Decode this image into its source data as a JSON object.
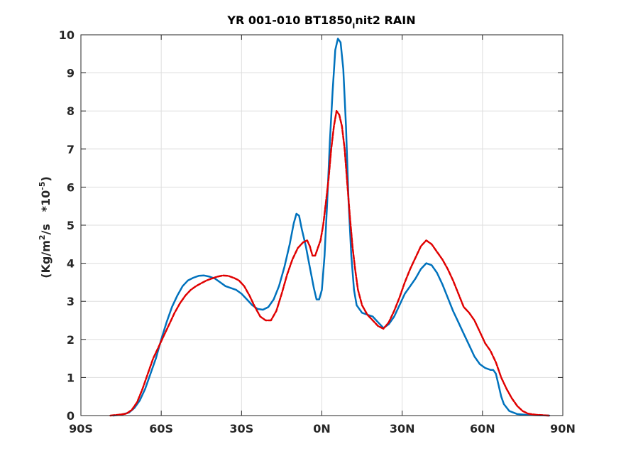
{
  "chart_data": {
    "type": "line",
    "title": {
      "prefix": "YR 001-010 BT1850",
      "subscript": "i",
      "suffix": "nit2 RAIN"
    },
    "ylabel": {
      "part1": "(Kg/m",
      "sup1": "2",
      "part2": "/s   *10",
      "sup2": "-5",
      "part3": ")"
    },
    "xlabel": "",
    "xlim": [
      -90,
      90
    ],
    "ylim": [
      0,
      10
    ],
    "xticks": [
      -90,
      -60,
      -30,
      0,
      30,
      60,
      90
    ],
    "xtick_labels": [
      "90S",
      "60S",
      "30S",
      "0N",
      "30N",
      "60N",
      "90N"
    ],
    "yticks": [
      0,
      1,
      2,
      3,
      4,
      5,
      6,
      7,
      8,
      9,
      10
    ],
    "ytick_labels": [
      "0",
      "1",
      "2",
      "3",
      "4",
      "5",
      "6",
      "7",
      "8",
      "9",
      "10"
    ],
    "grid": true,
    "series": [
      {
        "color": "#0072BD",
        "dash": "solid",
        "points": [
          [
            -78,
            0
          ],
          [
            -75,
            0.02
          ],
          [
            -72,
            0.08
          ],
          [
            -70,
            0.2
          ],
          [
            -68,
            0.4
          ],
          [
            -66,
            0.7
          ],
          [
            -64,
            1.1
          ],
          [
            -62,
            1.5
          ],
          [
            -60,
            2.0
          ],
          [
            -58,
            2.45
          ],
          [
            -56,
            2.85
          ],
          [
            -54,
            3.15
          ],
          [
            -52,
            3.4
          ],
          [
            -50,
            3.55
          ],
          [
            -48,
            3.62
          ],
          [
            -46,
            3.67
          ],
          [
            -44,
            3.68
          ],
          [
            -42,
            3.65
          ],
          [
            -40,
            3.6
          ],
          [
            -38,
            3.5
          ],
          [
            -36,
            3.4
          ],
          [
            -34,
            3.35
          ],
          [
            -32,
            3.3
          ],
          [
            -30,
            3.2
          ],
          [
            -28,
            3.05
          ],
          [
            -26,
            2.9
          ],
          [
            -24,
            2.8
          ],
          [
            -22,
            2.78
          ],
          [
            -20,
            2.85
          ],
          [
            -18,
            3.05
          ],
          [
            -16,
            3.4
          ],
          [
            -14,
            3.9
          ],
          [
            -12,
            4.5
          ],
          [
            -10.5,
            5.05
          ],
          [
            -9.5,
            5.3
          ],
          [
            -8.5,
            5.25
          ],
          [
            -7.5,
            4.9
          ],
          [
            -6,
            4.45
          ],
          [
            -4.5,
            3.9
          ],
          [
            -3,
            3.35
          ],
          [
            -2,
            3.05
          ],
          [
            -1,
            3.05
          ],
          [
            0,
            3.3
          ],
          [
            1,
            4.2
          ],
          [
            2,
            5.6
          ],
          [
            3,
            7.2
          ],
          [
            4,
            8.5
          ],
          [
            5,
            9.6
          ],
          [
            6,
            9.9
          ],
          [
            7,
            9.8
          ],
          [
            8,
            9.1
          ],
          [
            9,
            7.6
          ],
          [
            10,
            5.6
          ],
          [
            11,
            4.2
          ],
          [
            12,
            3.3
          ],
          [
            13,
            2.9
          ],
          [
            15,
            2.7
          ],
          [
            17,
            2.65
          ],
          [
            19,
            2.6
          ],
          [
            21,
            2.45
          ],
          [
            23,
            2.3
          ],
          [
            25,
            2.4
          ],
          [
            27,
            2.6
          ],
          [
            29,
            2.9
          ],
          [
            31,
            3.2
          ],
          [
            33,
            3.4
          ],
          [
            35,
            3.6
          ],
          [
            37,
            3.85
          ],
          [
            39,
            4.0
          ],
          [
            41,
            3.95
          ],
          [
            43,
            3.75
          ],
          [
            45,
            3.45
          ],
          [
            47,
            3.1
          ],
          [
            49,
            2.75
          ],
          [
            51,
            2.45
          ],
          [
            53,
            2.15
          ],
          [
            55,
            1.85
          ],
          [
            57,
            1.55
          ],
          [
            59,
            1.35
          ],
          [
            61,
            1.25
          ],
          [
            63,
            1.2
          ],
          [
            64,
            1.2
          ],
          [
            65,
            1.1
          ],
          [
            66,
            0.8
          ],
          [
            67,
            0.5
          ],
          [
            68,
            0.3
          ],
          [
            70,
            0.12
          ],
          [
            73,
            0.04
          ],
          [
            76,
            0.02
          ],
          [
            80,
            0.01
          ],
          [
            85,
            0
          ]
        ]
      },
      {
        "color": "#E00000",
        "dash": "dashed",
        "points": [
          [
            -79,
            0
          ],
          [
            -76,
            0.02
          ],
          [
            -73,
            0.05
          ],
          [
            -71,
            0.15
          ],
          [
            -69,
            0.35
          ],
          [
            -67,
            0.7
          ],
          [
            -65,
            1.1
          ],
          [
            -63,
            1.5
          ],
          [
            -61,
            1.8
          ],
          [
            -59,
            2.1
          ],
          [
            -57,
            2.4
          ],
          [
            -55,
            2.7
          ],
          [
            -53,
            2.95
          ],
          [
            -51,
            3.15
          ],
          [
            -49,
            3.3
          ],
          [
            -47,
            3.4
          ],
          [
            -45,
            3.48
          ],
          [
            -43,
            3.55
          ],
          [
            -41,
            3.6
          ],
          [
            -39,
            3.65
          ],
          [
            -37,
            3.68
          ],
          [
            -35,
            3.67
          ],
          [
            -33,
            3.62
          ],
          [
            -31,
            3.55
          ],
          [
            -29,
            3.4
          ],
          [
            -27,
            3.15
          ],
          [
            -25,
            2.85
          ],
          [
            -23,
            2.6
          ],
          [
            -21,
            2.5
          ],
          [
            -19,
            2.5
          ],
          [
            -17,
            2.75
          ],
          [
            -15,
            3.2
          ],
          [
            -13,
            3.7
          ],
          [
            -11,
            4.1
          ],
          [
            -9,
            4.4
          ],
          [
            -7,
            4.55
          ],
          [
            -5.5,
            4.6
          ],
          [
            -4.5,
            4.45
          ],
          [
            -3.5,
            4.2
          ],
          [
            -2.5,
            4.2
          ],
          [
            -1.5,
            4.4
          ],
          [
            -0.5,
            4.6
          ],
          [
            0.5,
            5.0
          ],
          [
            1.5,
            5.6
          ],
          [
            2.5,
            6.2
          ],
          [
            3.5,
            7.0
          ],
          [
            4.5,
            7.6
          ],
          [
            5.5,
            8.0
          ],
          [
            6.5,
            7.9
          ],
          [
            7.5,
            7.6
          ],
          [
            8.5,
            7.0
          ],
          [
            9.5,
            6.1
          ],
          [
            10.5,
            5.2
          ],
          [
            11.5,
            4.4
          ],
          [
            12.5,
            3.8
          ],
          [
            13.5,
            3.3
          ],
          [
            15,
            2.9
          ],
          [
            17,
            2.65
          ],
          [
            19,
            2.5
          ],
          [
            21,
            2.35
          ],
          [
            23,
            2.28
          ],
          [
            25,
            2.45
          ],
          [
            27,
            2.75
          ],
          [
            29,
            3.1
          ],
          [
            31,
            3.5
          ],
          [
            33,
            3.85
          ],
          [
            35,
            4.15
          ],
          [
            37,
            4.45
          ],
          [
            39,
            4.6
          ],
          [
            41,
            4.5
          ],
          [
            43,
            4.3
          ],
          [
            45,
            4.1
          ],
          [
            47,
            3.85
          ],
          [
            49,
            3.55
          ],
          [
            51,
            3.2
          ],
          [
            53,
            2.85
          ],
          [
            55,
            2.7
          ],
          [
            57,
            2.5
          ],
          [
            59,
            2.2
          ],
          [
            61,
            1.9
          ],
          [
            63,
            1.7
          ],
          [
            65,
            1.4
          ],
          [
            67,
            1.0
          ],
          [
            69,
            0.7
          ],
          [
            71,
            0.45
          ],
          [
            73,
            0.25
          ],
          [
            75,
            0.12
          ],
          [
            77,
            0.05
          ],
          [
            80,
            0.02
          ],
          [
            85,
            0
          ]
        ]
      }
    ]
  }
}
